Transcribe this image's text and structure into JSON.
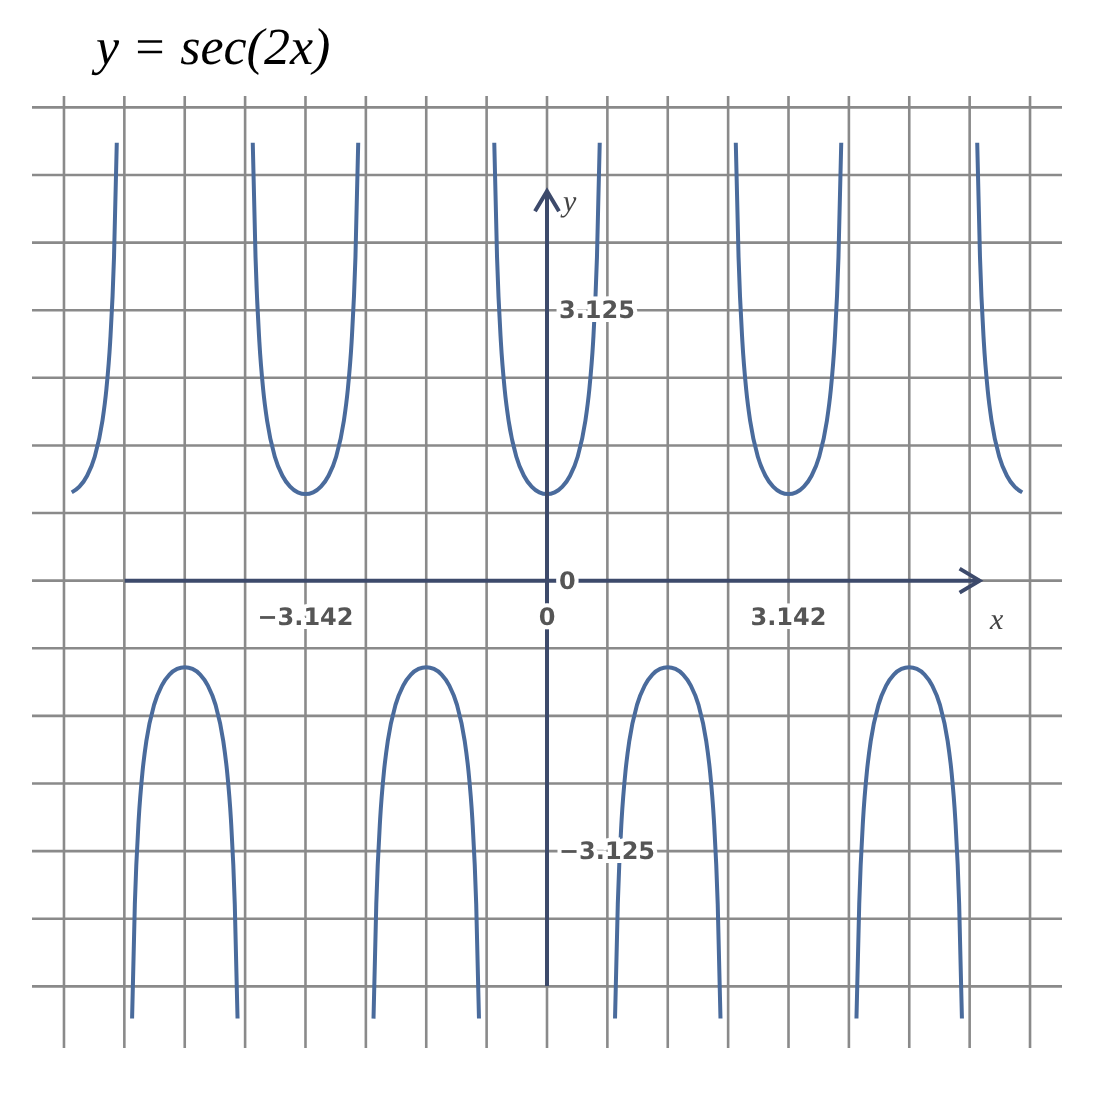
{
  "chart_data": {
    "type": "line",
    "title": "y = sec(2x)",
    "xlabel": "x",
    "ylabel": "y",
    "grid": true,
    "xlim": [
      -6.7,
      6.7
    ],
    "ylim": [
      -5.4,
      5.6
    ],
    "xticks": [
      {
        "value": -6.284,
        "label": null
      },
      {
        "value": -5.4985,
        "label": null
      },
      {
        "value": -4.713,
        "label": null
      },
      {
        "value": -3.9275,
        "label": null
      },
      -3.142,
      {
        "value": -2.3565,
        "label": null
      },
      {
        "value": -1.571,
        "label": null
      },
      {
        "value": -0.7855,
        "label": null
      },
      0,
      {
        "value": 0.7855,
        "label": null
      },
      {
        "value": 1.571,
        "label": null
      },
      {
        "value": 2.3565,
        "label": null
      },
      3.142,
      {
        "value": 3.9275,
        "label": null
      },
      {
        "value": 4.713,
        "label": null
      },
      {
        "value": 5.4985,
        "label": null
      },
      {
        "value": 6.284,
        "label": null
      }
    ],
    "yticks": [
      {
        "value": -4.6875,
        "label": null
      },
      {
        "value": -3.90625,
        "label": null
      },
      -3.125,
      {
        "value": -2.34375,
        "label": null
      },
      {
        "value": -1.5625,
        "label": null
      },
      {
        "value": -0.78125,
        "label": null
      },
      0,
      {
        "value": 0.78125,
        "label": null
      },
      {
        "value": 1.5625,
        "label": null
      },
      {
        "value": 2.34375,
        "label": null
      },
      3.125,
      {
        "value": 3.90625,
        "label": null
      },
      {
        "value": 4.6875,
        "label": null
      },
      {
        "value": 5.46875,
        "label": null
      }
    ],
    "series": [
      {
        "color": "#4a6b9c",
        "x": [
          -6.183,
          -6.083,
          -5.983,
          -5.883,
          -5.783,
          -5.733,
          -5.683,
          -5.633,
          -5.597,
          -5.5,
          -5.398,
          -5.362,
          -5.312,
          -5.262,
          -5.212,
          -5.112,
          -5.012,
          -4.912,
          -4.812,
          -4.712,
          -4.612,
          -4.512,
          -4.412,
          -4.312,
          -4.212,
          -4.162,
          -4.112,
          -4.062,
          -4.026,
          -3.927,
          -3.828,
          -3.792,
          -3.742,
          -3.692,
          -3.642,
          -3.542,
          -3.442,
          -3.342,
          -3.242,
          -3.142,
          -3.042,
          -2.942,
          -2.842,
          -2.742,
          -2.642,
          -2.592,
          -2.542,
          -2.492,
          -2.456,
          -2.356,
          -2.257,
          -2.221,
          -2.171,
          -2.121,
          -2.071,
          -1.971,
          -1.871,
          -1.771,
          -1.671,
          -1.571,
          -1.471,
          -1.371,
          -1.271,
          -1.171,
          -1.071,
          -1.021,
          -0.971,
          -0.921,
          -0.885,
          -0.785,
          -0.686,
          -0.65,
          -0.6,
          -0.55,
          -0.5,
          -0.4,
          -0.3,
          -0.2,
          -0.1,
          0,
          0.1,
          0.2,
          0.3,
          0.4,
          0.5,
          0.55,
          0.6,
          0.65,
          0.686,
          0.785,
          0.885,
          0.921,
          0.971,
          1.021,
          1.071,
          1.171,
          1.271,
          1.371,
          1.471,
          1.571,
          1.671,
          1.771,
          1.871,
          1.971,
          2.071,
          2.121,
          2.171,
          2.221,
          2.257,
          2.356,
          2.456,
          2.492,
          2.542,
          2.592,
          2.642,
          2.742,
          2.842,
          2.942,
          3.042,
          3.142,
          3.242,
          3.342,
          3.442,
          3.542,
          3.642,
          3.692,
          3.742,
          3.792,
          3.828,
          3.927,
          4.026,
          4.062,
          4.112,
          4.162,
          4.212,
          4.312,
          4.412,
          4.512,
          4.612,
          4.712,
          4.812,
          4.912,
          5.012,
          5.112,
          5.212,
          5.262,
          5.312,
          5.362,
          5.398,
          5.5,
          5.597,
          5.633,
          5.683,
          5.733,
          5.783,
          5.883,
          5.983,
          6.083,
          6.183
        ],
        "values": [
          1.02,
          1.086,
          1.212,
          1.435,
          1.851,
          2.205,
          2.759,
          3.738,
          5.06,
          null,
          -5.06,
          -3.738,
          -2.759,
          -2.205,
          -1.851,
          -1.435,
          -1.212,
          -1.086,
          -1.02,
          -1,
          -1.02,
          -1.086,
          -1.212,
          -1.435,
          -1.851,
          -2.205,
          -2.759,
          -3.738,
          -5.06,
          null,
          5.06,
          3.738,
          2.759,
          2.205,
          1.851,
          1.435,
          1.212,
          1.086,
          1.02,
          1,
          1.02,
          1.086,
          1.212,
          1.435,
          1.851,
          2.205,
          2.759,
          3.738,
          5.06,
          null,
          -5.06,
          -3.738,
          -2.759,
          -2.205,
          -1.851,
          -1.435,
          -1.212,
          -1.086,
          -1.02,
          -1,
          -1.02,
          -1.086,
          -1.212,
          -1.435,
          -1.851,
          -2.205,
          -2.759,
          -3.738,
          -5.06,
          null,
          5.06,
          3.738,
          2.759,
          2.205,
          1.851,
          1.435,
          1.212,
          1.086,
          1.02,
          1,
          1.02,
          1.086,
          1.212,
          1.435,
          1.851,
          2.205,
          2.759,
          3.738,
          5.06,
          null,
          -5.06,
          -3.738,
          -2.759,
          -2.205,
          -1.851,
          -1.435,
          -1.212,
          -1.086,
          -1.02,
          -1,
          -1.02,
          -1.086,
          -1.212,
          -1.435,
          -1.851,
          -2.205,
          -2.759,
          -3.738,
          -5.06,
          null,
          5.06,
          3.738,
          2.759,
          2.205,
          1.851,
          1.435,
          1.212,
          1.086,
          1.02,
          1,
          1.02,
          1.086,
          1.212,
          1.435,
          1.851,
          2.205,
          2.759,
          3.738,
          5.06,
          null,
          -5.06,
          -3.738,
          -2.759,
          -2.205,
          -1.851,
          -1.435,
          -1.212,
          -1.086,
          -1.02,
          -1,
          -1.02,
          -1.086,
          -1.212,
          -1.435,
          -1.851,
          -2.205,
          -2.759,
          -3.738,
          -5.06,
          null,
          5.06,
          3.738,
          2.759,
          2.205,
          1.851,
          1.435,
          1.212,
          1.086,
          1.02
        ]
      }
    ]
  }
}
